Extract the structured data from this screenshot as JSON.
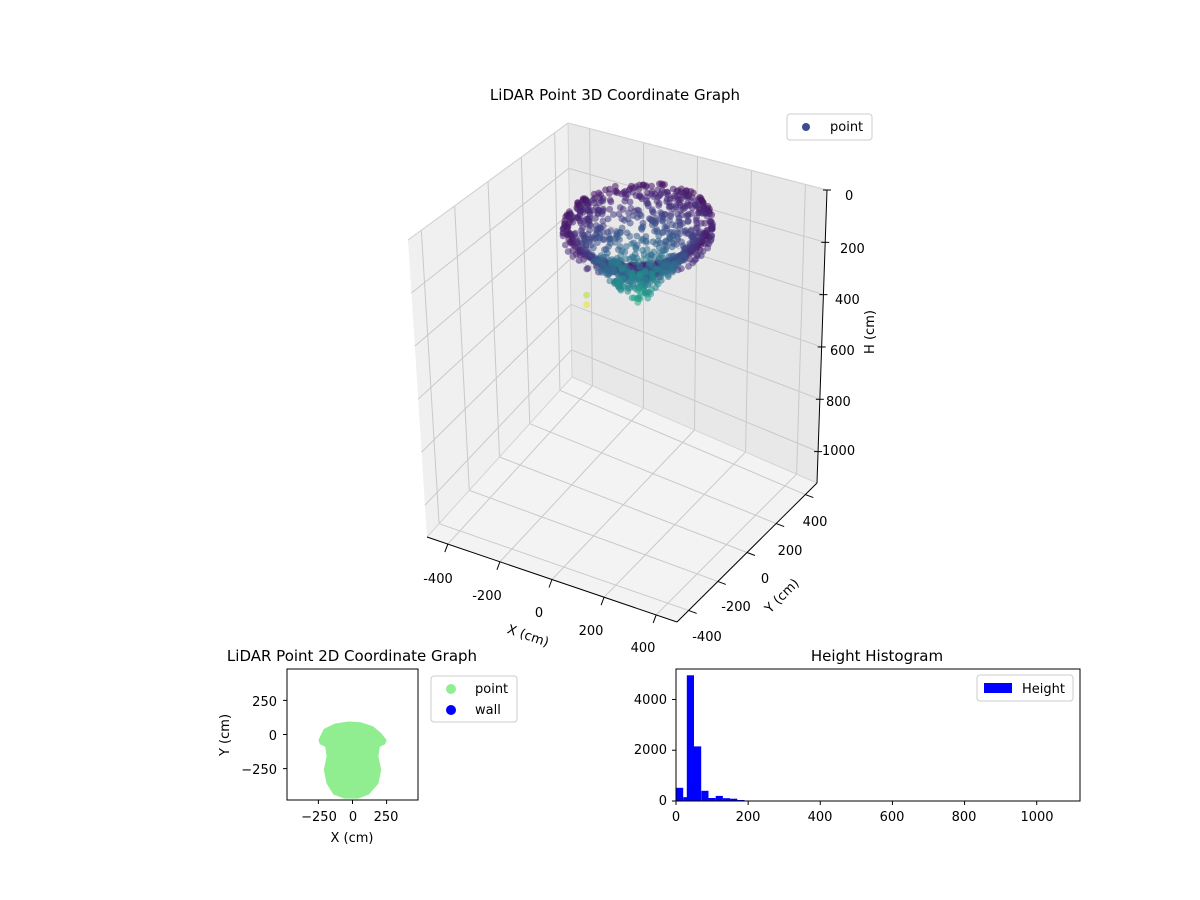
{
  "chart_data": [
    {
      "id": "lidar3d",
      "type": "scatter",
      "title": "LiDAR Point 3D Coordinate Graph",
      "xlabel": "X (cm)",
      "ylabel": "Y (cm)",
      "zlabel": "H (cm)",
      "xticks": [
        "-400",
        "-200",
        "0",
        "200",
        "400"
      ],
      "yticks": [
        "-400",
        "-200",
        "0",
        "200",
        "400"
      ],
      "zticks": [
        "0",
        "200",
        "400",
        "600",
        "800",
        "1000"
      ],
      "xlim": [
        -480,
        480
      ],
      "ylim": [
        -480,
        480
      ],
      "zlim": [
        0,
        1120
      ],
      "z_inverted": true,
      "colormap": "viridis",
      "grid": true,
      "legend": {
        "placement": "top-right",
        "entries": [
          {
            "label": "point",
            "color": "#3b4d8f"
          }
        ]
      },
      "cloud": {
        "center_x": -40,
        "center_y": -150,
        "extent_x": [
          -270,
          180
        ],
        "extent_y": [
          -440,
          100
        ],
        "height_range": [
          100,
          450
        ],
        "outliers": [
          {
            "x": -300,
            "y": -280,
            "h": 560
          },
          {
            "x": -300,
            "y": -280,
            "h": 600
          }
        ]
      }
    },
    {
      "id": "lidar2d",
      "type": "scatter",
      "title": "LiDAR Point 2D Coordinate Graph",
      "xlabel": "X (cm)",
      "ylabel": "Y (cm)",
      "xticks": [
        "−250",
        "0",
        "250"
      ],
      "yticks": [
        "250",
        "0",
        "−250"
      ],
      "xlim": [
        -480,
        480
      ],
      "ylim": [
        -480,
        480
      ],
      "legend": {
        "placement": "outside-right",
        "entries": [
          {
            "label": "point",
            "color": "#90ee90"
          },
          {
            "label": "wall",
            "color": "#0000ff"
          }
        ]
      }
    },
    {
      "id": "height_hist",
      "type": "bar",
      "title": "Height Histogram",
      "xlabel": "",
      "ylabel": "",
      "xticks": [
        "0",
        "200",
        "400",
        "600",
        "800",
        "1000"
      ],
      "yticks": [
        "0",
        "2000",
        "4000"
      ],
      "xlim": [
        0,
        1120
      ],
      "ylim": [
        0,
        5200
      ],
      "bar_color": "#0000ff",
      "bin_width": 20,
      "bins": [
        {
          "x0": 0,
          "count": 520
        },
        {
          "x0": 20,
          "count": 150
        },
        {
          "x0": 30,
          "count": 4950
        },
        {
          "x0": 50,
          "count": 2150
        },
        {
          "x0": 70,
          "count": 400
        },
        {
          "x0": 90,
          "count": 120
        },
        {
          "x0": 110,
          "count": 200
        },
        {
          "x0": 130,
          "count": 110
        },
        {
          "x0": 150,
          "count": 90
        },
        {
          "x0": 170,
          "count": 40
        },
        {
          "x0": 190,
          "count": 15
        }
      ],
      "legend": {
        "placement": "top-right",
        "entries": [
          {
            "label": "Height",
            "color": "#0000ff"
          }
        ]
      }
    }
  ]
}
